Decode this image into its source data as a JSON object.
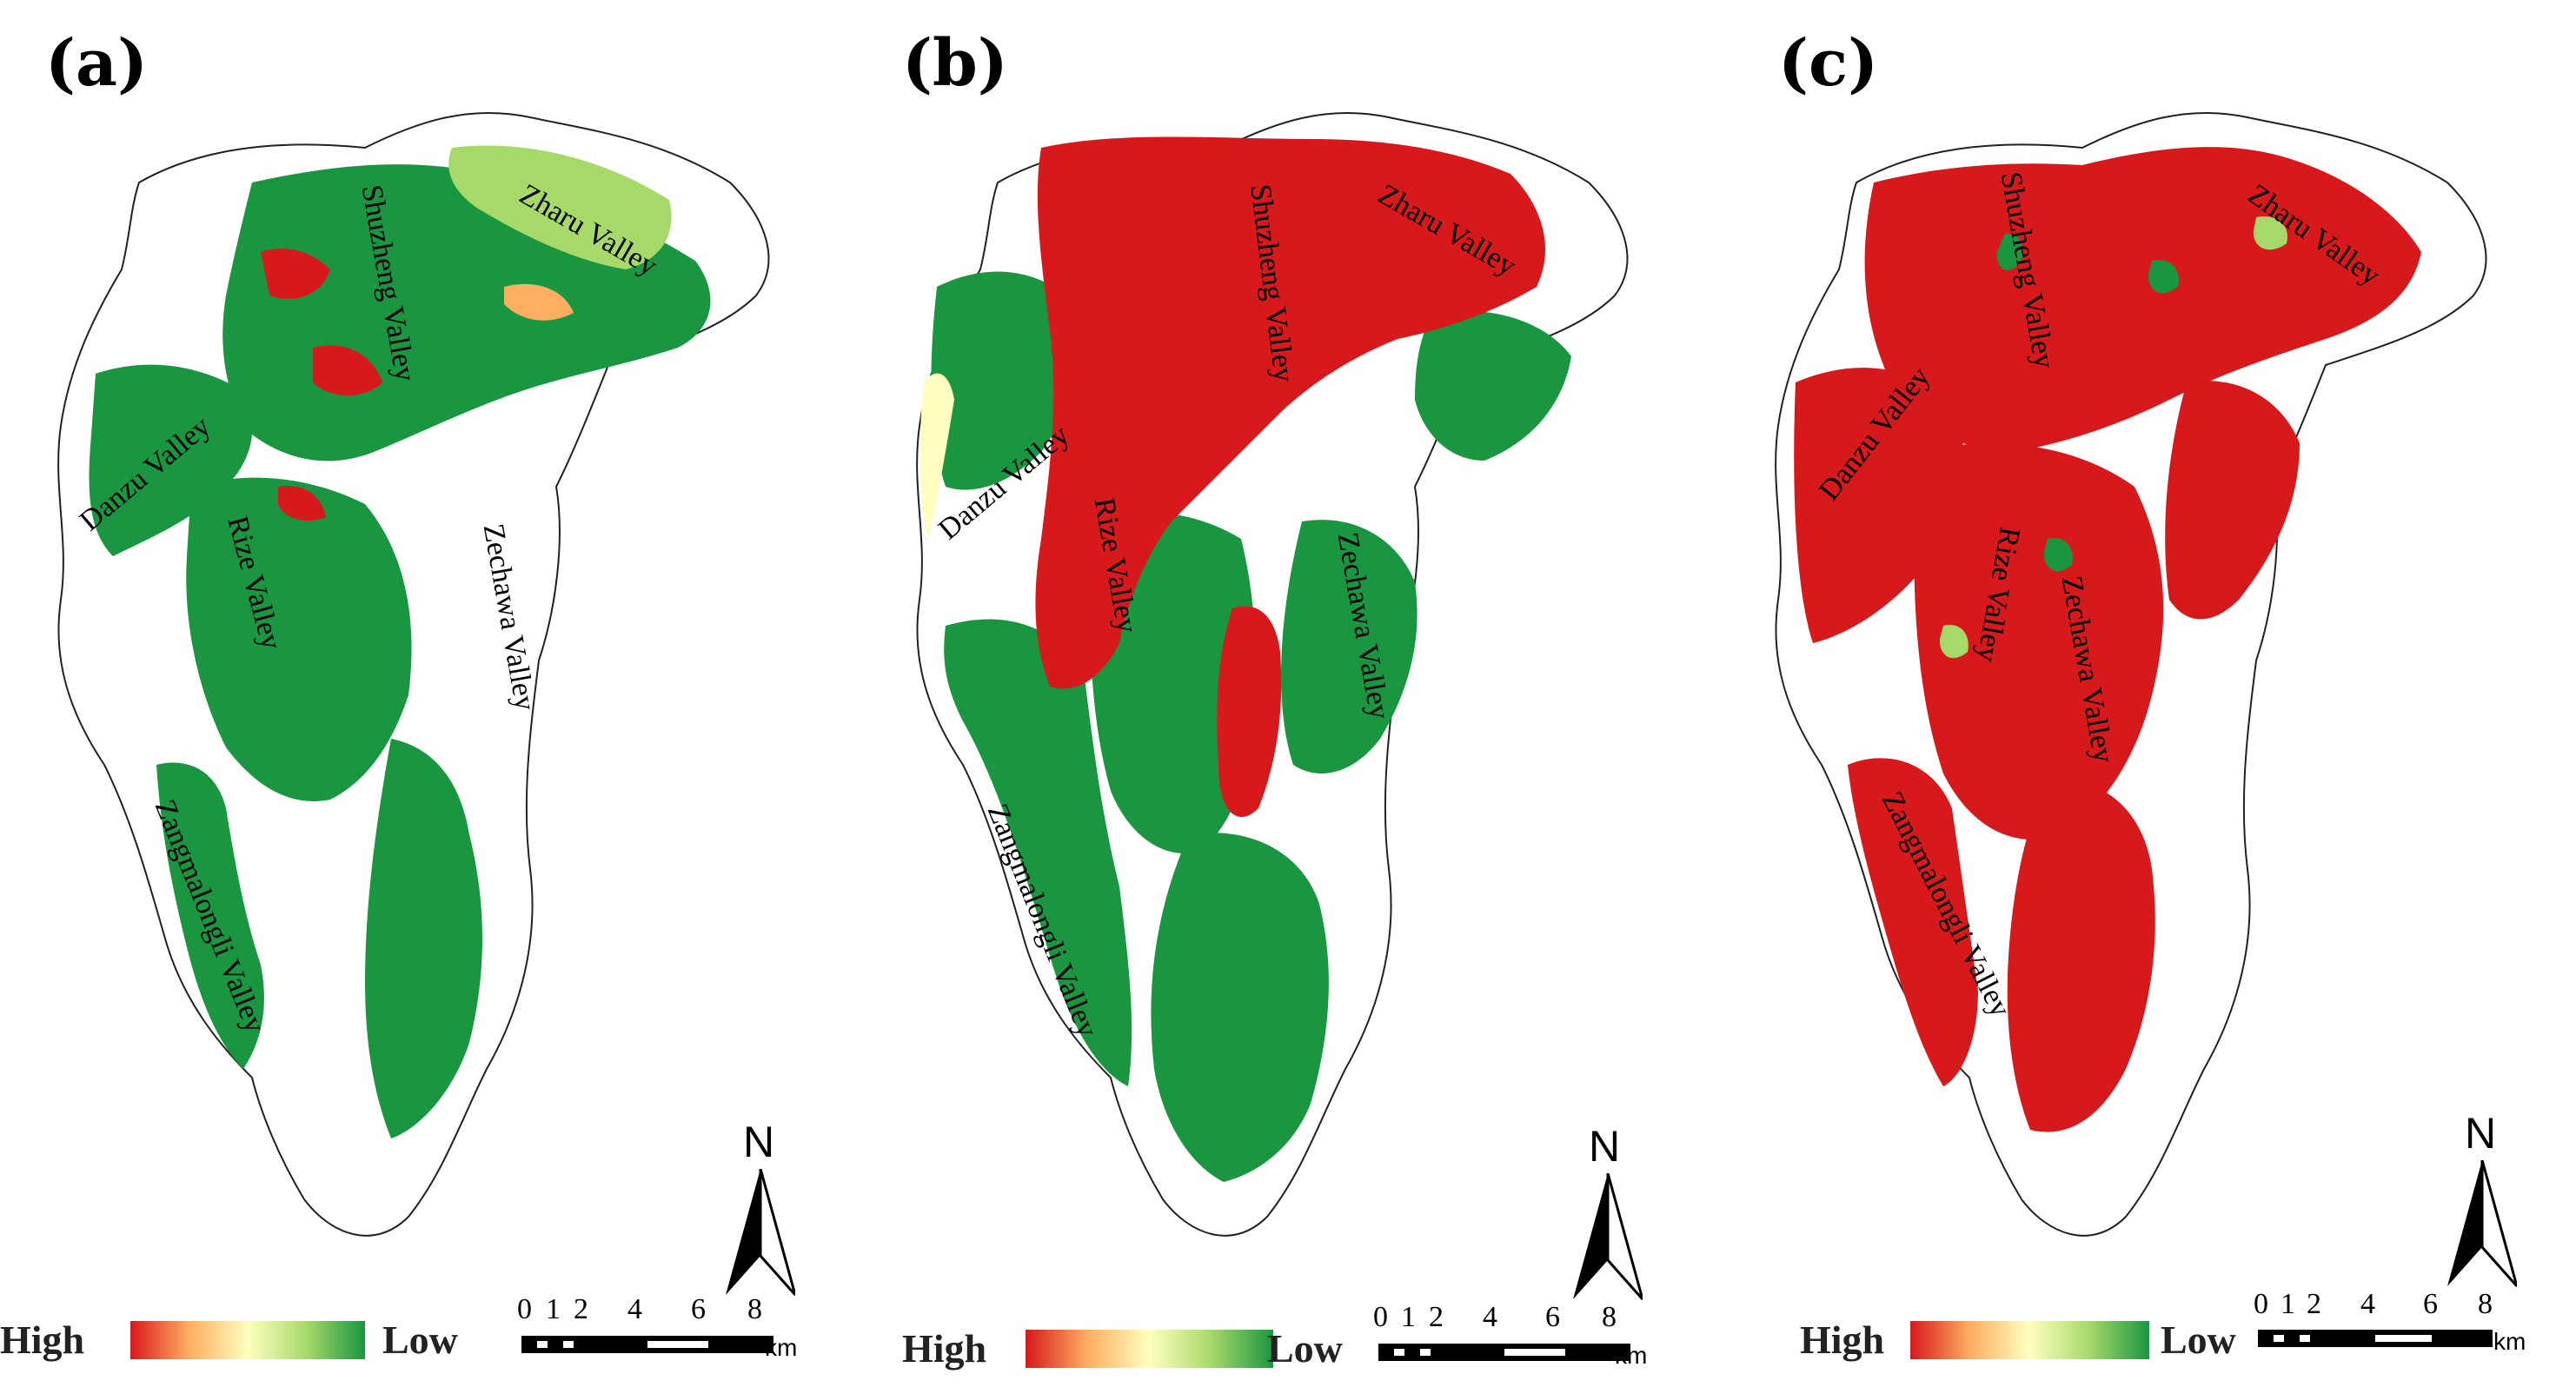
{
  "panels": [
    {
      "label": "(a)",
      "valleys": [
        "Zharu Valley",
        "Shuzheng Valley",
        "Danzu Valley",
        "Rize Valley",
        "Zechawa Valley",
        "Zangmalongli Valley"
      ]
    },
    {
      "label": "(b)",
      "valleys": [
        "Zharu Valley",
        "Shuzheng Valley",
        "Danzu Valley",
        "Rize Valley",
        "Zechawa Valley",
        "Zangmalongli Valley"
      ]
    },
    {
      "label": "(c)",
      "valleys": [
        "Zharu Valley",
        "Shuzheng Valley",
        "Danzu Valley",
        "Rize Valley",
        "Zechawa Valley",
        "Zangmalongli Valley"
      ]
    }
  ],
  "legend": {
    "high": "High",
    "low": "Low",
    "ramp_colors": [
      "#d7191c",
      "#fdae61",
      "#ffffbf",
      "#a6d96a",
      "#1a9641"
    ]
  },
  "north_arrow": {
    "label": "N"
  },
  "scale_bar": {
    "ticks": [
      "0",
      "1",
      "2",
      "4",
      "6",
      "8"
    ],
    "unit": "km"
  },
  "colors": {
    "high": "#d7191c",
    "mid": "#fdae61",
    "light": "#ffffbf",
    "pale_green": "#a6d96a",
    "low": "#1a9641",
    "boundary": "#222222"
  }
}
